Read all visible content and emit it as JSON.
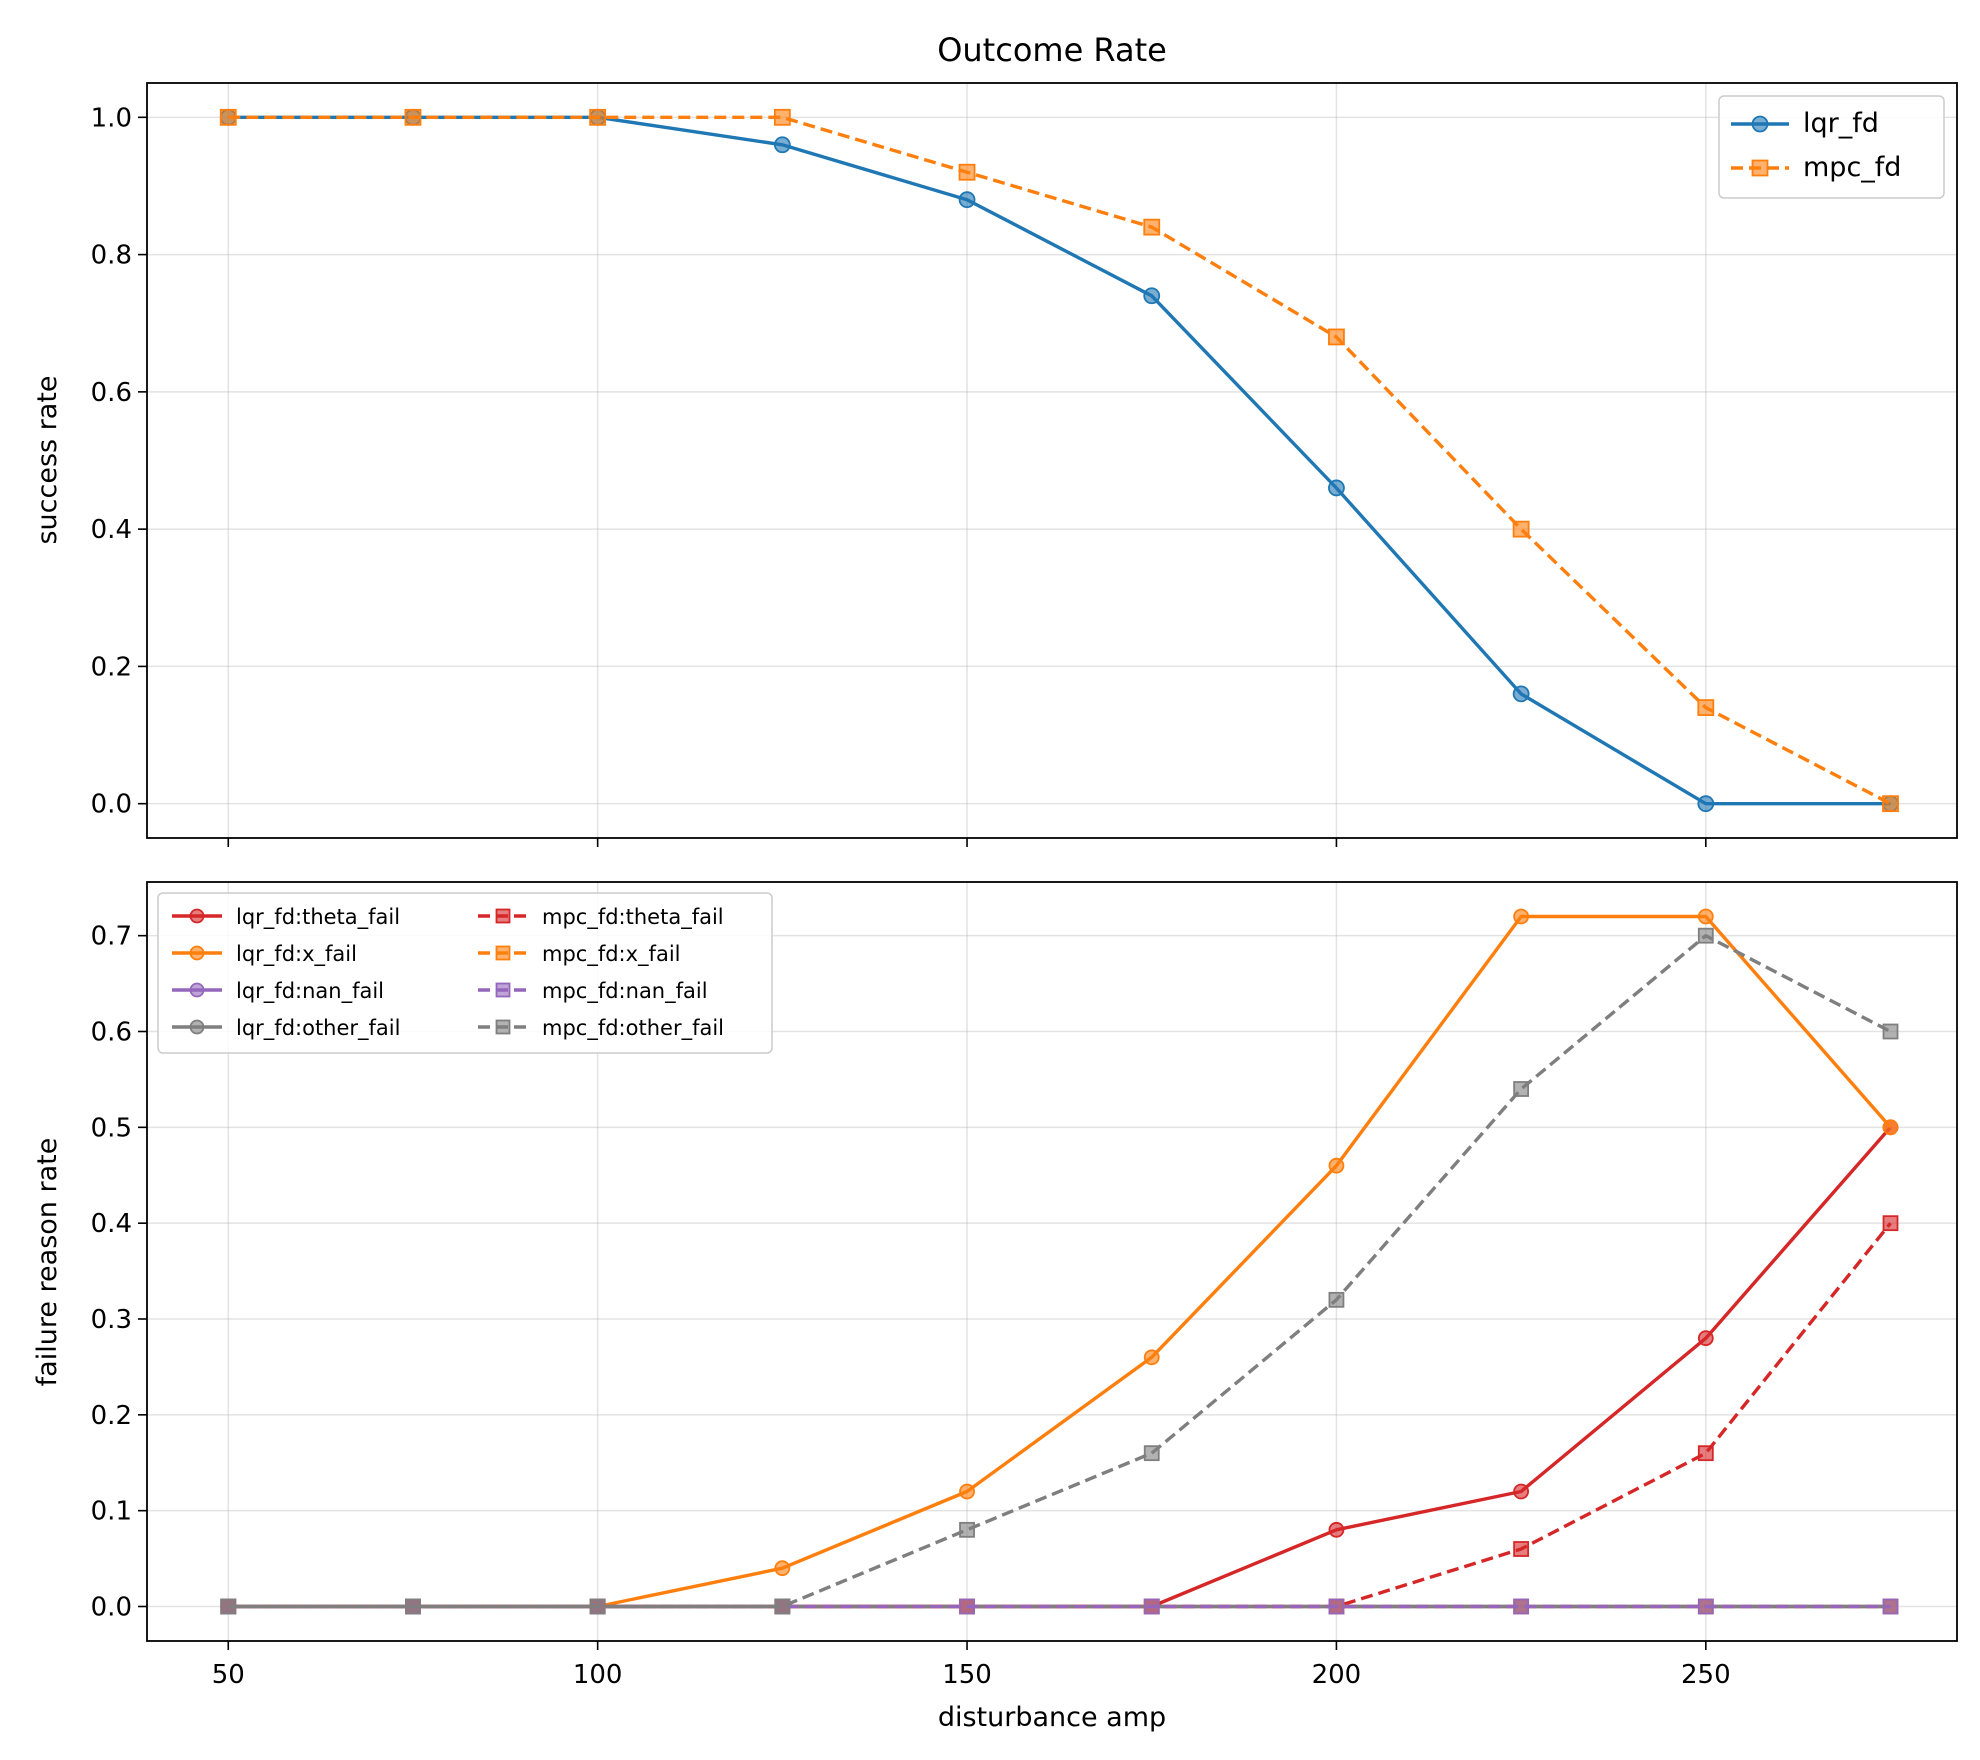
{
  "chart_data": [
    {
      "type": "line",
      "title": "Outcome Rate",
      "xlabel": "",
      "ylabel": "success rate",
      "x": [
        50,
        75,
        100,
        125,
        150,
        175,
        200,
        225,
        250,
        275
      ],
      "xlim": [
        39,
        284
      ],
      "ylim": [
        -0.05,
        1.05
      ],
      "xticks": [
        50,
        100,
        150,
        200,
        250
      ],
      "xtick_labels_visible": false,
      "yticks": [
        0.0,
        0.2,
        0.4,
        0.6,
        0.8,
        1.0
      ],
      "ytick_labels": [
        "0.0",
        "0.2",
        "0.4",
        "0.6",
        "0.8",
        "1.0"
      ],
      "grid": true,
      "legend_position": "top-right",
      "series": [
        {
          "name": "lqr_fd",
          "color": "#1f77b4",
          "linestyle": "solid",
          "marker": "circle",
          "values": [
            1.0,
            1.0,
            1.0,
            0.96,
            0.88,
            0.74,
            0.46,
            0.16,
            0.0,
            0.0
          ]
        },
        {
          "name": "mpc_fd",
          "color": "#ff7f0e",
          "linestyle": "dashed",
          "marker": "square",
          "values": [
            1.0,
            1.0,
            1.0,
            1.0,
            0.92,
            0.84,
            0.68,
            0.4,
            0.14,
            0.0
          ]
        }
      ]
    },
    {
      "type": "line",
      "title": "",
      "xlabel": "disturbance amp",
      "ylabel": "failure reason rate",
      "x": [
        50,
        75,
        100,
        125,
        150,
        175,
        200,
        225,
        250,
        275
      ],
      "xlim": [
        39,
        284
      ],
      "ylim": [
        -0.036,
        0.756
      ],
      "xticks": [
        50,
        100,
        150,
        200,
        250
      ],
      "xtick_labels": [
        "50",
        "100",
        "150",
        "200",
        "250"
      ],
      "yticks": [
        0.0,
        0.1,
        0.2,
        0.3,
        0.4,
        0.5,
        0.6,
        0.7
      ],
      "ytick_labels": [
        "0.0",
        "0.1",
        "0.2",
        "0.3",
        "0.4",
        "0.5",
        "0.6",
        "0.7"
      ],
      "grid": true,
      "legend_position": "top-left",
      "legend_columns": 2,
      "series": [
        {
          "name": "lqr_fd:theta_fail",
          "color": "#d62728",
          "linestyle": "solid",
          "marker": "circle",
          "values": [
            0,
            0,
            0,
            0,
            0,
            0,
            0.08,
            0.12,
            0.28,
            0.5
          ]
        },
        {
          "name": "lqr_fd:x_fail",
          "color": "#ff7f0e",
          "linestyle": "solid",
          "marker": "circle",
          "values": [
            0,
            0,
            0,
            0.04,
            0.12,
            0.26,
            0.46,
            0.72,
            0.72,
            0.5
          ]
        },
        {
          "name": "lqr_fd:nan_fail",
          "color": "#9467bd",
          "linestyle": "solid",
          "marker": "circle",
          "values": [
            0,
            0,
            0,
            0,
            0,
            0,
            0,
            0,
            0,
            0
          ]
        },
        {
          "name": "lqr_fd:other_fail",
          "color": "#7f7f7f",
          "linestyle": "solid",
          "marker": "circle",
          "values": [
            0,
            0,
            0,
            0,
            0,
            0,
            0,
            0,
            0,
            0
          ]
        },
        {
          "name": "mpc_fd:theta_fail",
          "color": "#d62728",
          "linestyle": "dashed",
          "marker": "square",
          "values": [
            0,
            0,
            0,
            0,
            0,
            0,
            0,
            0.06,
            0.16,
            0.4
          ]
        },
        {
          "name": "mpc_fd:x_fail",
          "color": "#ff7f0e",
          "linestyle": "dashed",
          "marker": "square",
          "values": [
            0,
            0,
            0,
            0,
            0,
            0,
            0,
            0,
            0,
            0
          ]
        },
        {
          "name": "mpc_fd:nan_fail",
          "color": "#9467bd",
          "linestyle": "dashed",
          "marker": "square",
          "values": [
            0,
            0,
            0,
            0,
            0,
            0,
            0,
            0,
            0,
            0
          ]
        },
        {
          "name": "mpc_fd:other_fail",
          "color": "#7f7f7f",
          "linestyle": "dashed",
          "marker": "square",
          "values": [
            0,
            0,
            0,
            0,
            0.08,
            0.16,
            0.32,
            0.54,
            0.7,
            0.6
          ]
        }
      ]
    }
  ]
}
